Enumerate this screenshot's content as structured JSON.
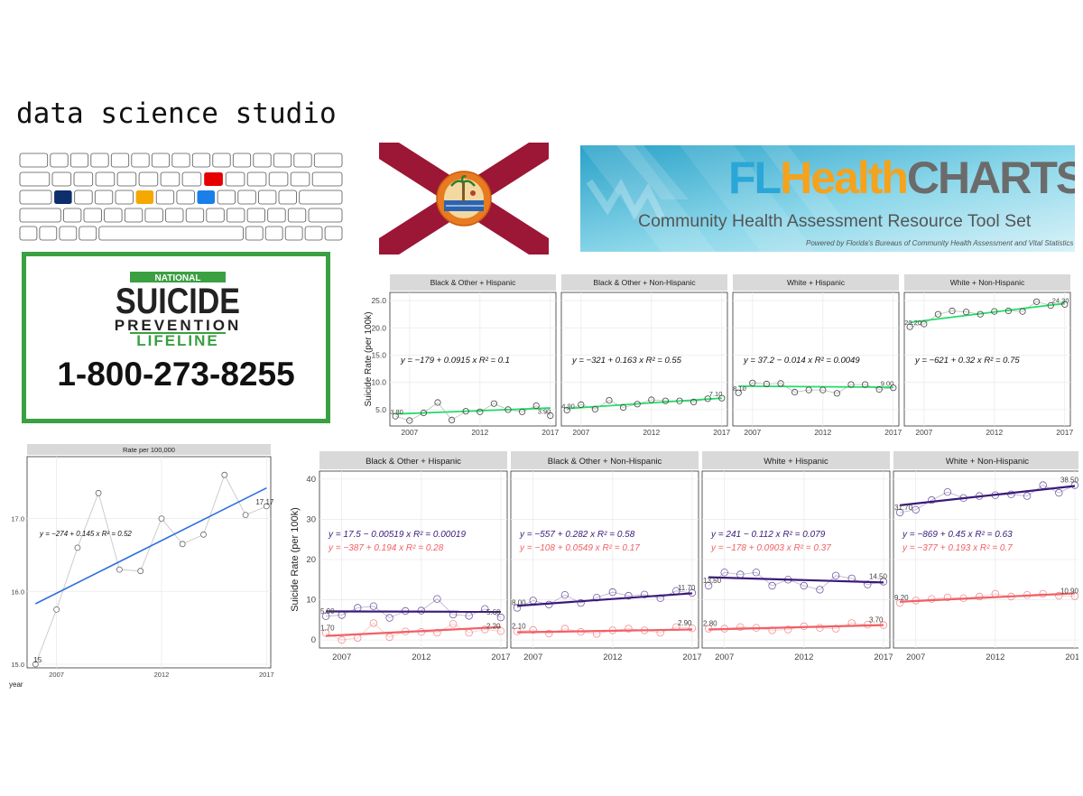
{
  "title": "data science studio",
  "keyboard": {
    "accent_colors": [
      "#e60000",
      "#0d2f6b",
      "#f5a800",
      "#1a7fe8"
    ]
  },
  "flag": {
    "red": "#9c1635",
    "seal_text": "GREAT SEAL OF THE STATE OF FLORIDA IN GOD WE TRUST"
  },
  "flhealthcharts": {
    "title_parts": [
      "FL",
      "Health",
      "CHARTS"
    ],
    "subtitle": "Community Health Assessment Resource Tool Set",
    "powered_by": "Powered by Florida's Bureaus of Community Health Assessment and Vital Statistics"
  },
  "lifeline": {
    "national": "NATIONAL",
    "suicide": "SUICIDE",
    "prevention": "PREVENTION",
    "lifeline": "LIFELINE",
    "phone": "1-800-273-8255"
  },
  "chart_data": [
    {
      "type": "scatter",
      "ylabel": "Suicide Rate (per 100k)",
      "xticks": [
        "2007",
        "2012",
        "2017"
      ],
      "yticks": [
        "5.0",
        "10.0",
        "15.0",
        "20.0",
        "25.0"
      ],
      "ylim": [
        2,
        26.5
      ],
      "xlim": [
        2005.6,
        2017.4
      ],
      "line_color": "#22dd66",
      "facets": [
        {
          "label": "Black & Other + Hispanic",
          "x": [
            2006,
            2007,
            2008,
            2009,
            2010,
            2011,
            2012,
            2013,
            2014,
            2015,
            2016,
            2017
          ],
          "y": [
            3.8,
            3.0,
            4.4,
            6.3,
            3.1,
            4.7,
            4.6,
            6.1,
            5.0,
            4.6,
            5.7,
            3.9
          ],
          "fit": [
            4.2,
            5.3
          ],
          "eq": "y = −179 + 0.0915 x   R² = 0.1",
          "first_label": "3.80",
          "last_label": "3.90"
        },
        {
          "label": "Black & Other + Non-Hispanic",
          "x": [
            2006,
            2007,
            2008,
            2009,
            2010,
            2011,
            2012,
            2013,
            2014,
            2015,
            2016,
            2017
          ],
          "y": [
            4.9,
            5.9,
            5.1,
            6.7,
            5.4,
            6.0,
            6.8,
            6.6,
            6.6,
            6.4,
            7.0,
            7.1
          ],
          "fit": [
            5.2,
            7.1
          ],
          "eq": "y = −321 + 0.163 x   R² = 0.55",
          "first_label": "4.90",
          "last_label": "7.10"
        },
        {
          "label": "White + Hispanic",
          "x": [
            2006,
            2007,
            2008,
            2009,
            2010,
            2011,
            2012,
            2013,
            2014,
            2015,
            2016,
            2017
          ],
          "y": [
            8.1,
            9.9,
            9.7,
            9.8,
            8.2,
            8.6,
            8.6,
            8.0,
            9.6,
            9.6,
            8.7,
            9.0
          ],
          "fit": [
            9.3,
            9.1
          ],
          "eq": "y = 37.2 − 0.014 x   R² = 0.0049",
          "first_label": "8.10",
          "last_label": "9.00"
        },
        {
          "label": "White + Non-Hispanic",
          "x": [
            2006,
            2007,
            2008,
            2009,
            2010,
            2011,
            2012,
            2013,
            2014,
            2015,
            2016,
            2017
          ],
          "y": [
            20.2,
            20.7,
            22.5,
            23.1,
            22.9,
            22.5,
            23.0,
            23.1,
            23.0,
            24.8,
            24.1,
            24.3
          ],
          "fit": [
            21.0,
            24.5
          ],
          "eq": "y = −621 + 0.32 x   R² = 0.75",
          "first_label": "20.20",
          "last_label": "24.30"
        }
      ]
    },
    {
      "type": "line",
      "title": "Rate per 100,000",
      "xlabel": "year",
      "xticks": [
        "2007",
        "2012",
        "2017"
      ],
      "yticks": [
        "15.0",
        "16.0",
        "17.0"
      ],
      "ylim": [
        14.95,
        17.85
      ],
      "xlim": [
        2005.6,
        2017.2
      ],
      "x": [
        2006,
        2007,
        2008,
        2009,
        2010,
        2011,
        2012,
        2013,
        2014,
        2015,
        2016,
        2017
      ],
      "y": [
        15.0,
        15.75,
        16.6,
        17.35,
        16.3,
        16.28,
        17.0,
        16.65,
        16.78,
        17.6,
        17.05,
        17.17
      ],
      "fit": [
        15.83,
        17.42
      ],
      "eq": "y = −274 + 0.145 x   R² = 0.52",
      "first_label": "15",
      "last_label": "17.17",
      "line_color": "#2f6fe0"
    },
    {
      "type": "scatter",
      "ylabel": "Suicide Rate (per 100k)",
      "xticks": [
        "2007",
        "2012",
        "2017"
      ],
      "yticks": [
        "0",
        "10",
        "20",
        "30",
        "40"
      ],
      "ylim": [
        -2,
        42
      ],
      "xlim": [
        2005.6,
        2017.4
      ],
      "series_colors": [
        "#3b1a7a",
        "#f06065"
      ],
      "facets": [
        {
          "label": "Black & Other + Hispanic",
          "a": {
            "y": [
              5.9,
              6.2,
              8.0,
              8.4,
              5.5,
              7.2,
              7.3,
              10.2,
              6.3,
              6.0,
              7.7,
              5.6
            ],
            "fit": [
              7.1,
              7.0
            ],
            "eq": "y = 17.5 − 0.00519 x   R² = 0.00019",
            "first_label": "5.90",
            "last_label": "5.60"
          },
          "b": {
            "y": [
              1.7,
              0.0,
              0.5,
              4.2,
              0.7,
              2.1,
              2.0,
              1.8,
              4.0,
              1.8,
              2.6,
              2.2
            ],
            "fit": [
              1.0,
              3.2
            ],
            "eq": "y = −387 + 0.194 x   R² = 0.28",
            "first_label": "1.70",
            "last_label": "2.20"
          }
        },
        {
          "label": "Black & Other + Non-Hispanic",
          "a": {
            "y": [
              8.0,
              9.8,
              8.8,
              11.2,
              9.2,
              10.5,
              11.9,
              11.0,
              11.3,
              10.4,
              12.2,
              11.7
            ],
            "fit": [
              8.5,
              11.6
            ],
            "eq": "y = −557 + 0.282 x   R² = 0.58",
            "first_label": "8.00",
            "last_label": "11.70"
          },
          "b": {
            "y": [
              2.1,
              2.5,
              1.6,
              2.8,
              2.0,
              1.5,
              2.4,
              2.8,
              2.4,
              1.8,
              3.2,
              2.9
            ],
            "fit": [
              1.9,
              2.6
            ],
            "eq": "y = −108 + 0.0549 x   R² = 0.17",
            "first_label": "2.10",
            "last_label": "2.90"
          }
        },
        {
          "label": "White + Hispanic",
          "a": {
            "y": [
              13.5,
              16.8,
              16.3,
              16.8,
              13.5,
              15.0,
              13.5,
              12.5,
              16.0,
              15.3,
              13.8,
              14.5
            ],
            "fit": [
              15.6,
              14.3
            ],
            "eq": "y = 241 − 0.112 x   R² = 0.079",
            "first_label": "13.50",
            "last_label": "14.50"
          },
          "b": {
            "y": [
              2.8,
              2.8,
              3.2,
              3.0,
              2.4,
              2.6,
              3.4,
              3.0,
              2.8,
              4.2,
              3.8,
              3.7
            ],
            "fit": [
              2.6,
              3.7
            ],
            "eq": "y = −178 + 0.0903 x   R² = 0.37",
            "first_label": "2.80",
            "last_label": "3.70"
          }
        },
        {
          "label": "White + Non-Hispanic",
          "a": {
            "y": [
              31.7,
              32.4,
              34.8,
              36.8,
              35.3,
              35.8,
              36.0,
              36.2,
              35.8,
              38.5,
              36.6,
              38.5
            ],
            "fit": [
              33.5,
              38.3
            ],
            "eq": "y = −869 + 0.45 x   R² = 0.63",
            "first_label": "31.70",
            "last_label": "38.50"
          },
          "b": {
            "y": [
              9.2,
              9.8,
              10.2,
              10.6,
              10.4,
              10.8,
              11.5,
              10.8,
              11.2,
              11.5,
              11.0,
              10.9
            ],
            "fit": [
              9.5,
              11.6
            ],
            "eq": "y = −377 + 0.193 x   R² = 0.7",
            "first_label": "9.20",
            "last_label": "10.90"
          }
        }
      ]
    }
  ]
}
